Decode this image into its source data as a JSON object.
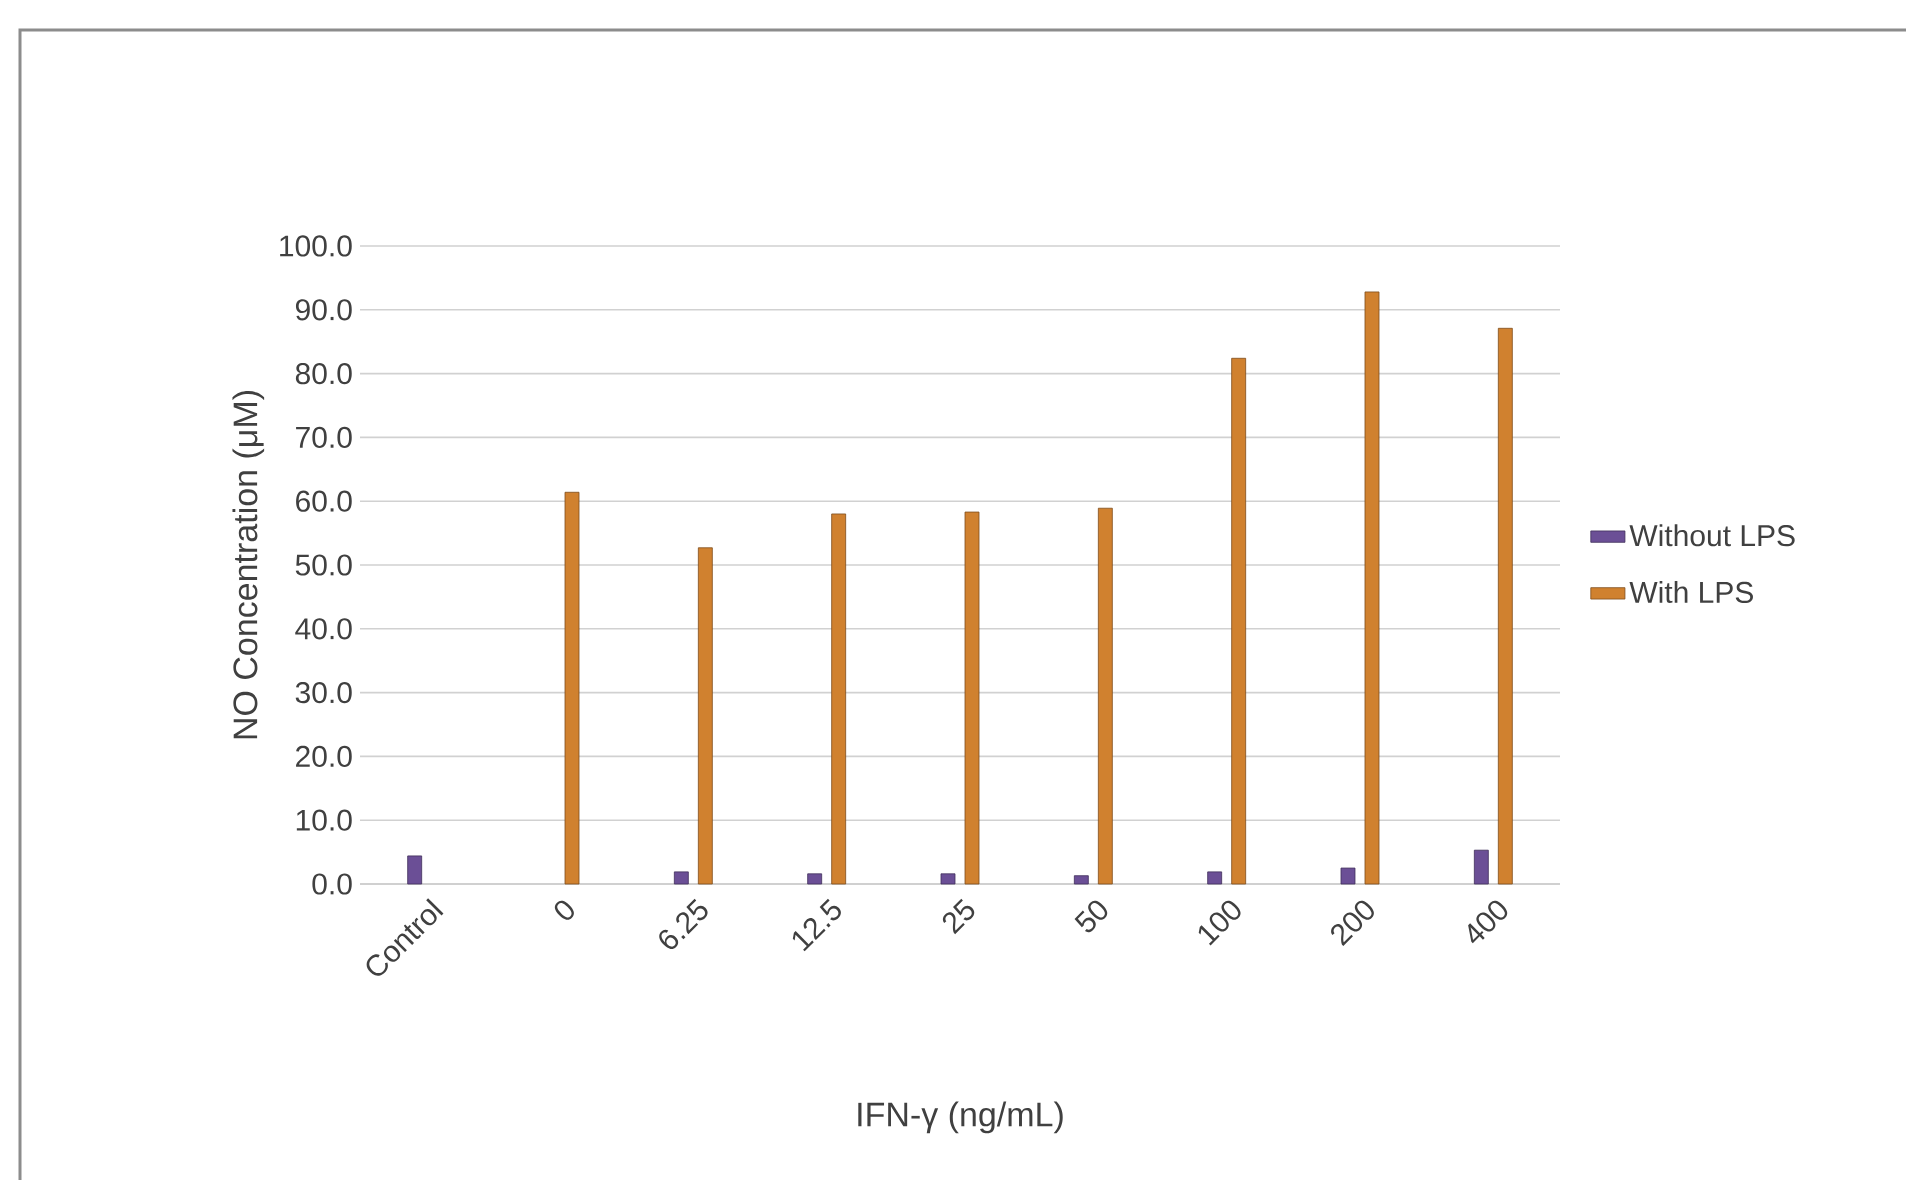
{
  "chart_data": {
    "type": "bar",
    "xlabel": "IFN-γ (ng/mL)",
    "ylabel": "NO Concentration (μM)",
    "categories": [
      "Control",
      "0",
      "6.25",
      "12.5",
      "25",
      "50",
      "100",
      "200",
      "400"
    ],
    "series": [
      {
        "name": "Without LPS",
        "color": "#6b4f96",
        "values": [
          4.4,
          null,
          1.9,
          1.6,
          1.6,
          1.3,
          1.9,
          2.5,
          5.3
        ]
      },
      {
        "name": "With LPS",
        "color": "#d0812f",
        "values": [
          null,
          61.4,
          52.7,
          58.0,
          58.3,
          58.9,
          82.4,
          92.8,
          87.1
        ]
      }
    ],
    "ylim": [
      0,
      100
    ],
    "yticks": [
      {
        "value": 0,
        "label": "0.0"
      },
      {
        "value": 10,
        "label": "10.0"
      },
      {
        "value": 20,
        "label": "20.0"
      },
      {
        "value": 30,
        "label": "30.0"
      },
      {
        "value": 40,
        "label": "40.0"
      },
      {
        "value": 50,
        "label": "50.0"
      },
      {
        "value": 60,
        "label": "60.0"
      },
      {
        "value": 70,
        "label": "70.0"
      },
      {
        "value": 80,
        "label": "80.0"
      },
      {
        "value": 90,
        "label": "90.0"
      },
      {
        "value": 100,
        "label": "100.0"
      }
    ],
    "grid": "y",
    "legend": "right"
  }
}
